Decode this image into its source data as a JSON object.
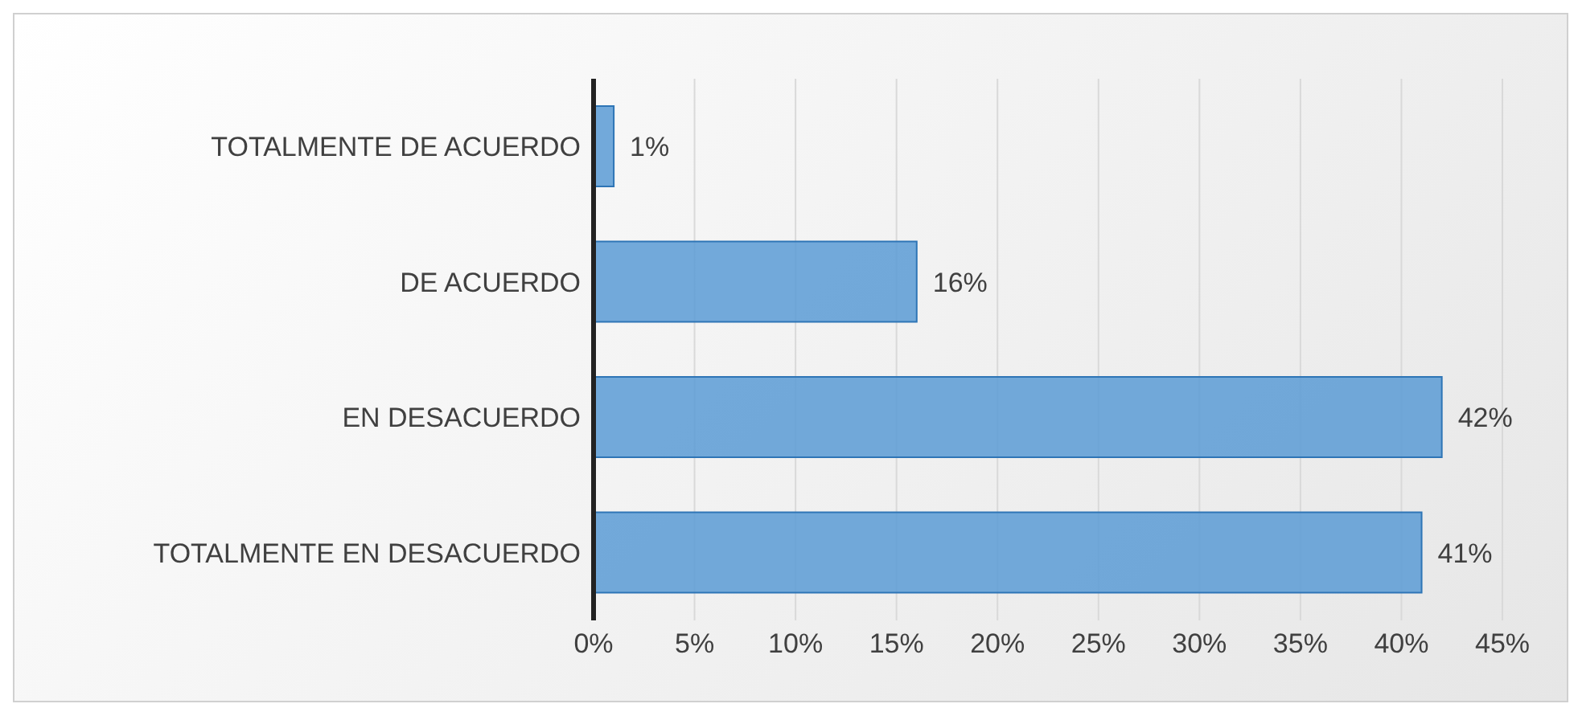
{
  "chart_data": {
    "type": "bar",
    "orientation": "horizontal",
    "categories": [
      "TOTALMENTE DE ACUERDO",
      "DE ACUERDO",
      "EN DESACUERDO",
      "TOTALMENTE EN DESACUERDO"
    ],
    "values": [
      1,
      16,
      42,
      41
    ],
    "value_labels": [
      "1%",
      "16%",
      "42%",
      "41%"
    ],
    "color": "#5b9bd5",
    "xlim": [
      0,
      45
    ],
    "xticks": [
      {
        "value": 0,
        "label": "0%"
      },
      {
        "value": 5,
        "label": "5%"
      },
      {
        "value": 10,
        "label": "10%"
      },
      {
        "value": 15,
        "label": "15%"
      },
      {
        "value": 20,
        "label": "20%"
      },
      {
        "value": 25,
        "label": "25%"
      },
      {
        "value": 30,
        "label": "30%"
      },
      {
        "value": 35,
        "label": "35%"
      },
      {
        "value": 40,
        "label": "40%"
      },
      {
        "value": 45,
        "label": "45%"
      }
    ],
    "grid": "x",
    "legend": false
  }
}
